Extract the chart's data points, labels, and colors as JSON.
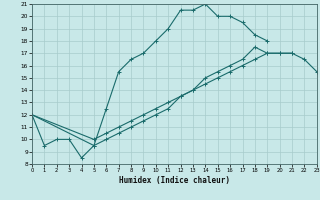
{
  "xlabel": "Humidex (Indice chaleur)",
  "bg_color": "#c8e8e8",
  "grid_color": "#a8cccc",
  "line_color": "#1a6b6b",
  "xlim": [
    0,
    23
  ],
  "ylim": [
    8,
    21
  ],
  "xticks": [
    0,
    1,
    2,
    3,
    4,
    5,
    6,
    7,
    8,
    9,
    10,
    11,
    12,
    13,
    14,
    15,
    16,
    17,
    18,
    19,
    20,
    21,
    22,
    23
  ],
  "yticks": [
    8,
    9,
    10,
    11,
    12,
    13,
    14,
    15,
    16,
    17,
    18,
    19,
    20,
    21
  ],
  "curve1_x": [
    0,
    1,
    2,
    3,
    4,
    5,
    6,
    7,
    8,
    9,
    10,
    11,
    12,
    13,
    14,
    15,
    16,
    17,
    18,
    19
  ],
  "curve1_y": [
    12,
    9.5,
    10,
    10,
    8.5,
    9.5,
    12.5,
    15.5,
    16.5,
    17,
    18,
    19,
    20.5,
    20.5,
    21,
    20,
    20,
    19.5,
    18.5,
    18
  ],
  "curve2_x": [
    0,
    5,
    6,
    7,
    8,
    9,
    10,
    11,
    12,
    13,
    14,
    15,
    16,
    17,
    18,
    19,
    20,
    21,
    22,
    23
  ],
  "curve2_y": [
    12,
    10,
    10.5,
    11,
    11.5,
    12,
    12.5,
    13,
    13.5,
    14,
    14.5,
    15,
    15.5,
    16,
    16.5,
    17,
    17,
    17,
    16.5,
    15.5
  ],
  "curve3_x": [
    0,
    5,
    6,
    7,
    8,
    9,
    10,
    11,
    12,
    13,
    14,
    15,
    16,
    17,
    18,
    19,
    20,
    21
  ],
  "curve3_y": [
    12,
    9.5,
    10,
    10.5,
    11,
    11.5,
    12,
    12.5,
    13.5,
    14,
    15,
    15.5,
    16,
    16.5,
    17.5,
    17,
    17,
    17
  ]
}
